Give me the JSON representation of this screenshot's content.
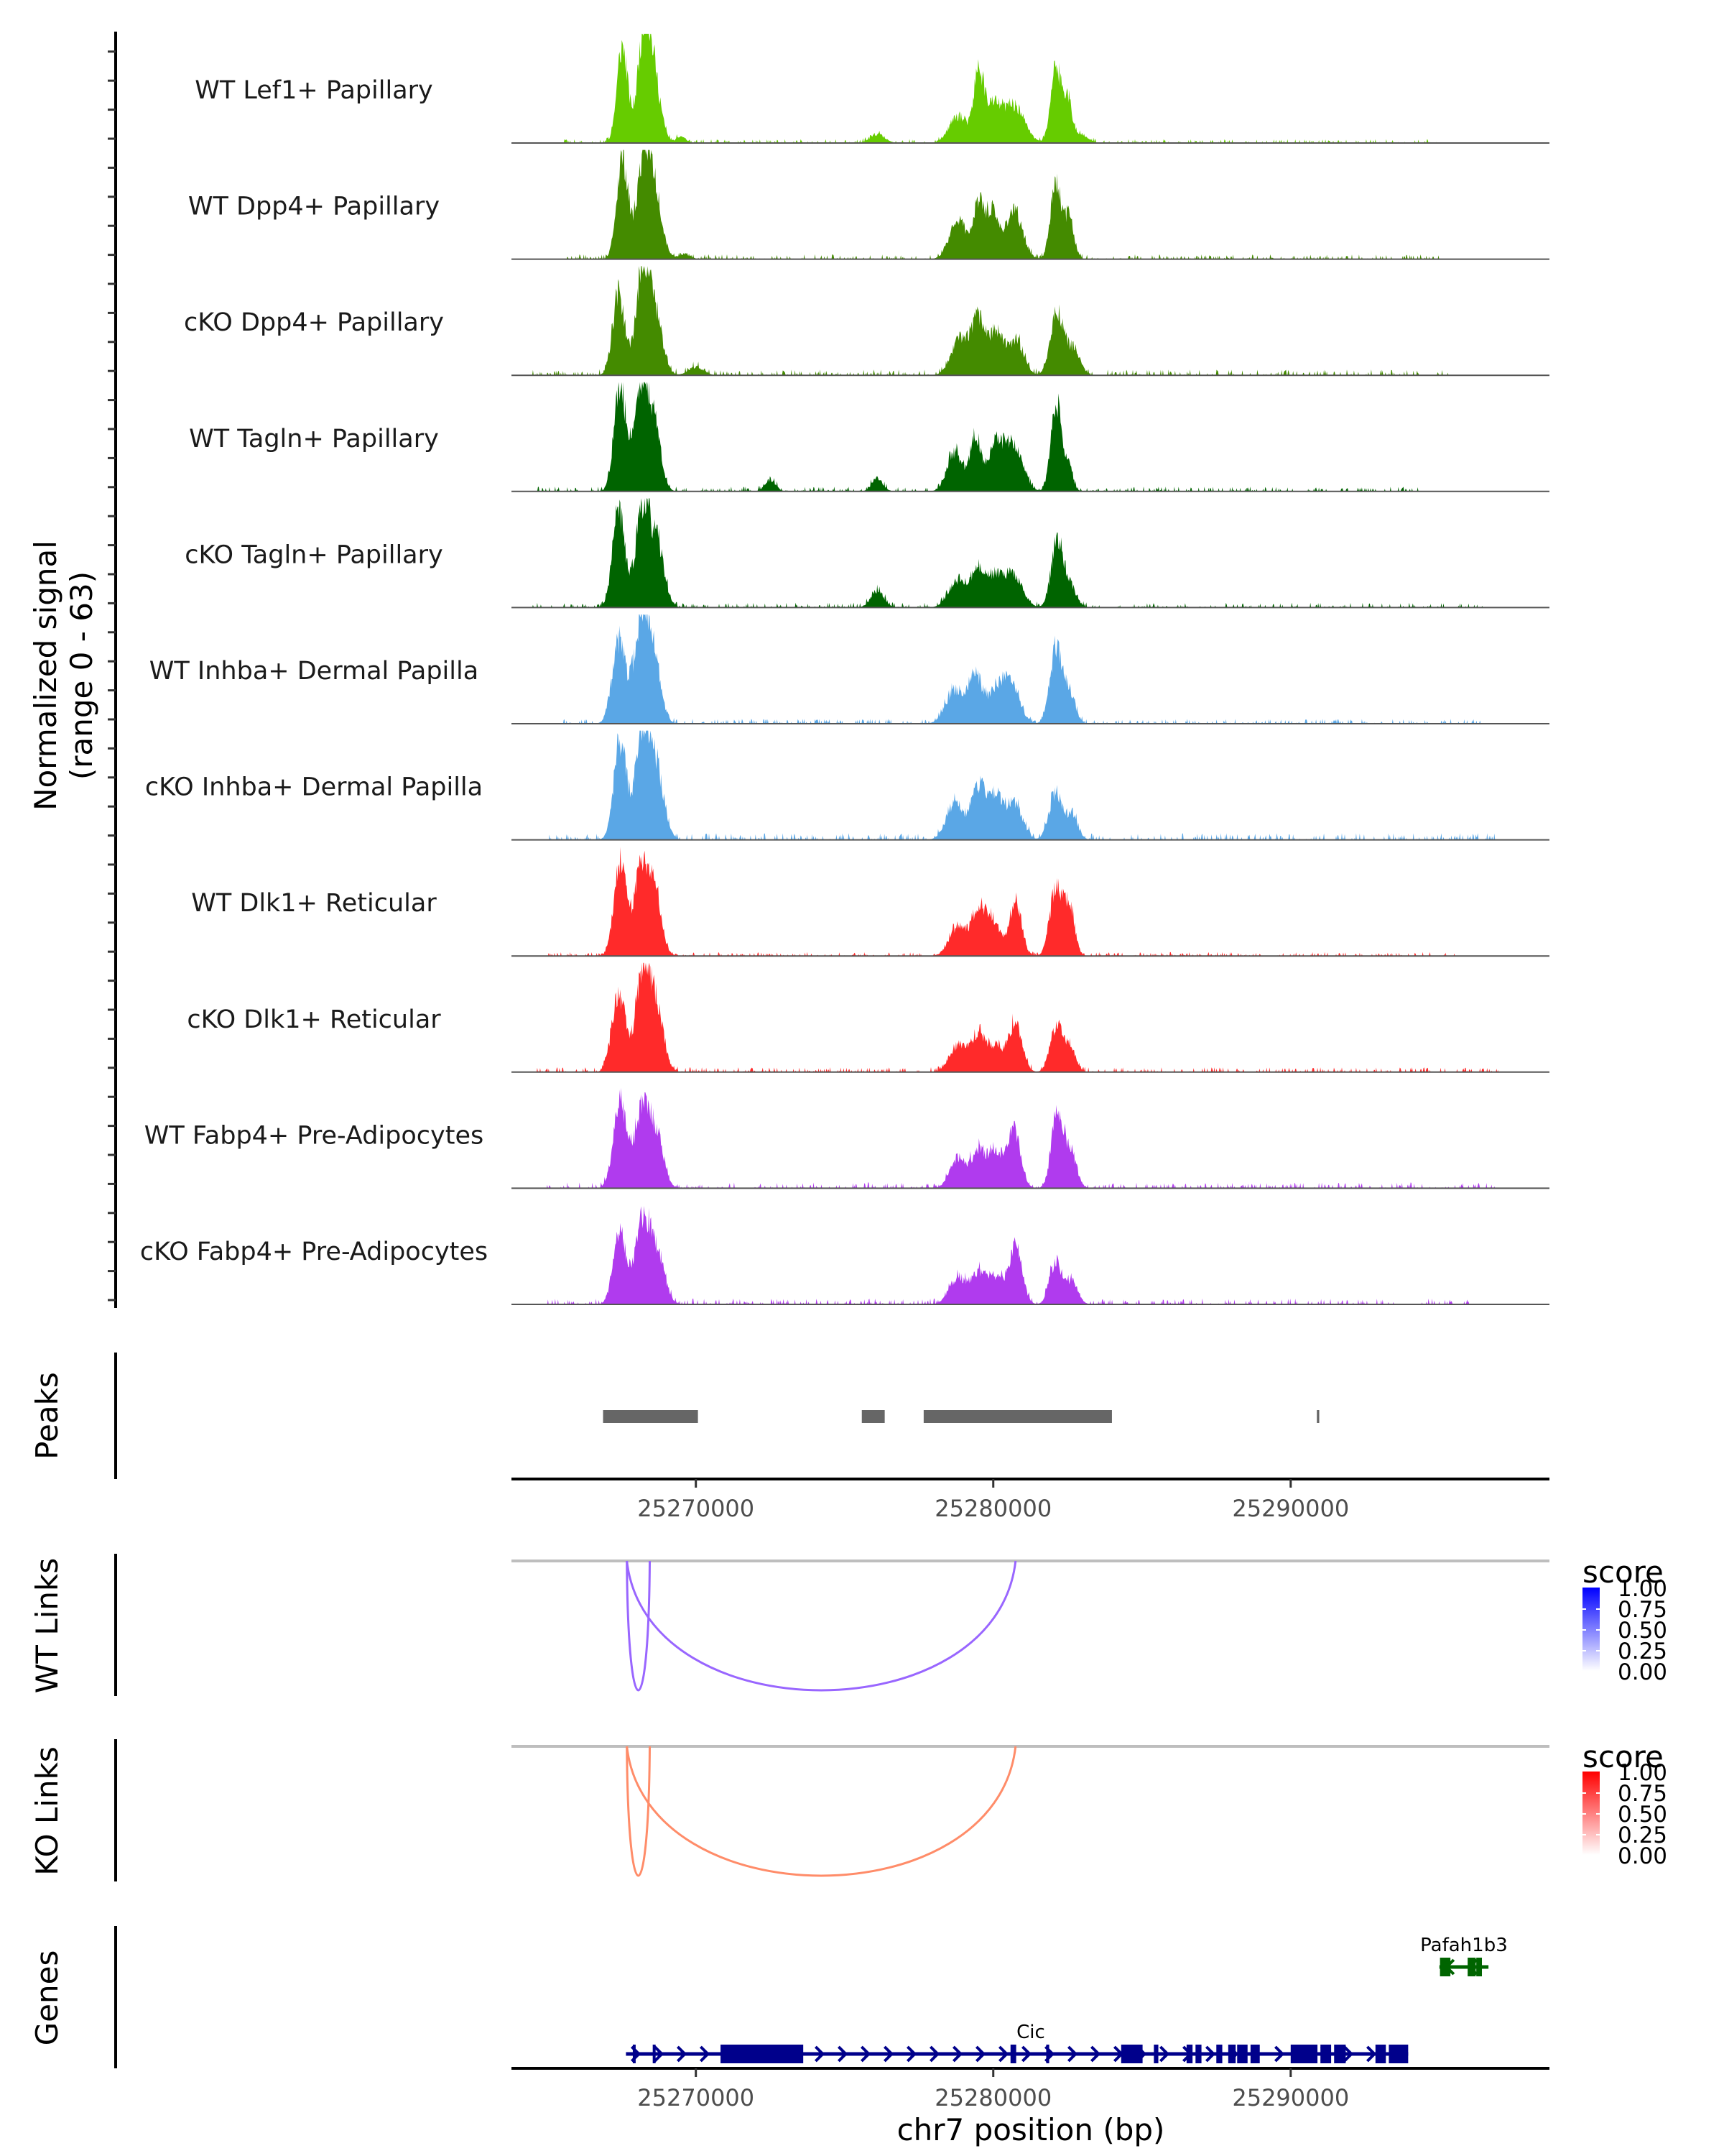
{
  "chart_data": {
    "type": "area",
    "title": "",
    "region": {
      "chrom": "chr7",
      "xlim": [
        25263800,
        25298700
      ]
    },
    "xlabel": "chr7 position (bp)",
    "x_ticks": [
      25270000,
      25280000,
      25290000
    ],
    "x_tick_labels": [
      "25270000",
      "25280000",
      "25290000"
    ],
    "coverage_ylabel_line1": "Normalized signal",
    "coverage_ylabel_line2": "(range 0 - 63)",
    "coverage_ylim": [
      0,
      63
    ],
    "tracks": [
      {
        "name": "WT Lef1+ Papillary",
        "color": "#66cc00",
        "seed": 11,
        "peaks": [
          [
            25267530,
            58,
            180
          ],
          [
            25268230,
            57,
            200
          ],
          [
            25268550,
            43,
            240
          ],
          [
            25269500,
            4,
            150
          ],
          [
            25276100,
            5,
            250
          ],
          [
            25278820,
            16,
            300
          ],
          [
            25279500,
            37,
            160
          ],
          [
            25279950,
            22,
            300
          ],
          [
            25280700,
            22,
            350
          ],
          [
            25282100,
            46,
            170
          ],
          [
            25282500,
            27,
            150
          ],
          [
            25283000,
            5,
            200
          ]
        ],
        "noise_range": [
          25265500,
          25295000
        ],
        "noise_level": 2.0
      },
      {
        "name": "WT Dpp4+ Papillary",
        "color": "#448b00",
        "seed": 23,
        "peaks": [
          [
            25267530,
            62,
            190
          ],
          [
            25268230,
            54,
            220
          ],
          [
            25268600,
            40,
            250
          ],
          [
            25269600,
            3,
            200
          ],
          [
            25278820,
            24,
            280
          ],
          [
            25279500,
            30,
            180
          ],
          [
            25279950,
            28,
            220
          ],
          [
            25280700,
            29,
            280
          ],
          [
            25282100,
            48,
            170
          ],
          [
            25282550,
            26,
            160
          ]
        ],
        "noise_range": [
          25265500,
          25295000
        ],
        "noise_level": 2.5
      },
      {
        "name": "cKO Dpp4+ Papillary",
        "color": "#448b00",
        "seed": 37,
        "peaks": [
          [
            25267400,
            50,
            200
          ],
          [
            25268200,
            56,
            230
          ],
          [
            25268600,
            36,
            260
          ],
          [
            25270000,
            5,
            250
          ],
          [
            25278900,
            22,
            300
          ],
          [
            25279500,
            30,
            220
          ],
          [
            25280100,
            25,
            280
          ],
          [
            25280800,
            19,
            250
          ],
          [
            25282150,
            38,
            220
          ],
          [
            25282700,
            15,
            220
          ]
        ],
        "noise_range": [
          25264500,
          25295500
        ],
        "noise_level": 3.0
      },
      {
        "name": "WT Tagln+ Papillary",
        "color": "#006400",
        "seed": 41,
        "peaks": [
          [
            25267450,
            63,
            200
          ],
          [
            25268150,
            62,
            230
          ],
          [
            25268600,
            40,
            220
          ],
          [
            25272500,
            7,
            180
          ],
          [
            25276100,
            8,
            180
          ],
          [
            25278700,
            24,
            250
          ],
          [
            25279400,
            33,
            180
          ],
          [
            25280100,
            27,
            280
          ],
          [
            25280700,
            25,
            300
          ],
          [
            25282100,
            55,
            170
          ],
          [
            25282500,
            18,
            150
          ]
        ],
        "noise_range": [
          25264500,
          25294500
        ],
        "noise_level": 2.5
      },
      {
        "name": "cKO Tagln+ Papillary",
        "color": "#006400",
        "seed": 53,
        "peaks": [
          [
            25267400,
            60,
            200
          ],
          [
            25268200,
            60,
            230
          ],
          [
            25268700,
            37,
            240
          ],
          [
            25276100,
            10,
            220
          ],
          [
            25278800,
            16,
            300
          ],
          [
            25279500,
            20,
            250
          ],
          [
            25280100,
            18,
            280
          ],
          [
            25280700,
            18,
            300
          ],
          [
            25282150,
            40,
            200
          ],
          [
            25282600,
            12,
            200
          ]
        ],
        "noise_range": [
          25264500,
          25296500
        ],
        "noise_level": 2.5
      },
      {
        "name": "WT Inhba+ Dermal Papilla",
        "color": "#5aa7e6",
        "seed": 67,
        "peaks": [
          [
            25267400,
            50,
            220
          ],
          [
            25268150,
            55,
            250
          ],
          [
            25268550,
            40,
            250
          ],
          [
            25278700,
            20,
            300
          ],
          [
            25279400,
            28,
            250
          ],
          [
            25280200,
            24,
            300
          ],
          [
            25280700,
            16,
            250
          ],
          [
            25282100,
            45,
            200
          ],
          [
            25282550,
            18,
            200
          ]
        ],
        "noise_range": [
          25265500,
          25296500
        ],
        "noise_level": 2.5
      },
      {
        "name": "cKO Inhba+ Dermal Papilla",
        "color": "#5aa7e6",
        "seed": 79,
        "peaks": [
          [
            25267450,
            60,
            210
          ],
          [
            25268200,
            62,
            230
          ],
          [
            25268650,
            44,
            260
          ],
          [
            25278700,
            22,
            280
          ],
          [
            25279500,
            30,
            250
          ],
          [
            25280100,
            26,
            280
          ],
          [
            25280750,
            20,
            250
          ],
          [
            25282100,
            28,
            220
          ],
          [
            25282650,
            14,
            200
          ]
        ],
        "noise_range": [
          25265000,
          25297000
        ],
        "noise_level": 3.5
      },
      {
        "name": "WT Dlk1+ Reticular",
        "color": "#ff2a2a",
        "seed": 83,
        "peaks": [
          [
            25267450,
            58,
            200
          ],
          [
            25268150,
            52,
            230
          ],
          [
            25268600,
            40,
            230
          ],
          [
            25278800,
            18,
            280
          ],
          [
            25279500,
            28,
            230
          ],
          [
            25280000,
            20,
            250
          ],
          [
            25280750,
            33,
            200
          ],
          [
            25282100,
            40,
            200
          ],
          [
            25282550,
            30,
            180
          ]
        ],
        "noise_range": [
          25265000,
          25295500
        ],
        "noise_level": 2.0
      },
      {
        "name": "cKO Dlk1+ Reticular",
        "color": "#ff2a2a",
        "seed": 97,
        "peaks": [
          [
            25267400,
            48,
            220
          ],
          [
            25268200,
            55,
            240
          ],
          [
            25268650,
            38,
            250
          ],
          [
            25278800,
            16,
            280
          ],
          [
            25279500,
            22,
            250
          ],
          [
            25280100,
            15,
            250
          ],
          [
            25280750,
            30,
            220
          ],
          [
            25282100,
            26,
            200
          ],
          [
            25282550,
            16,
            200
          ]
        ],
        "noise_range": [
          25264500,
          25297000
        ],
        "noise_level": 2.5
      },
      {
        "name": "WT Fabp4+ Pre-Adipocytes",
        "color": "#b03bee",
        "seed": 101,
        "peaks": [
          [
            25267450,
            52,
            220
          ],
          [
            25268200,
            48,
            250
          ],
          [
            25268700,
            30,
            230
          ],
          [
            25278800,
            18,
            260
          ],
          [
            25279500,
            22,
            250
          ],
          [
            25280100,
            20,
            250
          ],
          [
            25280700,
            34,
            220
          ],
          [
            25282150,
            47,
            190
          ],
          [
            25282600,
            22,
            200
          ]
        ],
        "noise_range": [
          25265000,
          25297000
        ],
        "noise_level": 3.0
      },
      {
        "name": "cKO Fabp4+ Pre-Adipocytes",
        "color": "#b03bee",
        "seed": 113,
        "peaks": [
          [
            25267450,
            42,
            220
          ],
          [
            25268200,
            48,
            250
          ],
          [
            25268700,
            28,
            250
          ],
          [
            25278800,
            16,
            280
          ],
          [
            25279500,
            18,
            250
          ],
          [
            25280100,
            16,
            260
          ],
          [
            25280750,
            34,
            220
          ],
          [
            25282100,
            26,
            200
          ],
          [
            25282650,
            14,
            200
          ]
        ],
        "noise_range": [
          25265000,
          25296000
        ],
        "noise_level": 3.0
      }
    ],
    "peaks_track": {
      "label": "Peaks",
      "color": "#666666",
      "regions": [
        [
          25266880,
          25270070
        ],
        [
          25275580,
          25276350
        ],
        [
          25277660,
          25283990
        ],
        [
          25290880,
          25290960
        ]
      ]
    },
    "links": [
      {
        "label": "WT Links",
        "legend_title": "score",
        "color_low": "#ffffff",
        "color_high": "#0000ff",
        "line_color": "#9966ff",
        "arcs": [
          {
            "start": 25267680,
            "end": 25268450,
            "score": 0.6
          },
          {
            "start": 25267680,
            "end": 25280750,
            "score": 0.6
          }
        ],
        "legend_breaks": [
          "1.00",
          "0.75",
          "0.50",
          "0.25",
          "0.00"
        ]
      },
      {
        "label": "KO Links",
        "legend_title": "score",
        "color_low": "#ffffff",
        "color_high": "#ff0000",
        "line_color": "#ff8c69",
        "arcs": [
          {
            "start": 25267680,
            "end": 25268450,
            "score": 0.55
          },
          {
            "start": 25267680,
            "end": 25280750,
            "score": 0.55
          }
        ],
        "legend_breaks": [
          "1.00",
          "0.75",
          "0.50",
          "0.25",
          "0.00"
        ]
      }
    ],
    "genes_track": {
      "label": "Genes",
      "genes": [
        {
          "name": "Cic",
          "strand": "+",
          "color": "#00008b",
          "start": 25267650,
          "end": 25293950,
          "exons": [
            [
              25267880,
              25267940
            ],
            [
              25268550,
              25268620
            ],
            [
              25270830,
              25273610
            ],
            [
              25280580,
              25280770
            ],
            [
              25281780,
              25281880
            ],
            [
              25284300,
              25285020
            ],
            [
              25285400,
              25285550
            ],
            [
              25291000,
              25291360
            ],
            [
              25291460,
              25291850
            ],
            [
              25292850,
              25293200
            ],
            [
              25293300,
              25293950
            ],
            [
              25288200,
              25288550
            ],
            [
              25288650,
              25288960
            ],
            [
              25287900,
              25288150
            ],
            [
              25287500,
              25287700
            ],
            [
              25286800,
              25287000
            ],
            [
              25286500,
              25286700
            ],
            [
              25290000,
              25290900
            ]
          ]
        },
        {
          "name": "Pafah1b3",
          "strand": "-",
          "color": "#006400",
          "start": 25295000,
          "end": 25296650,
          "exons": [
            [
              25295020,
              25295370
            ],
            [
              25295950,
              25296220
            ],
            [
              25296240,
              25296430
            ]
          ]
        }
      ]
    }
  }
}
